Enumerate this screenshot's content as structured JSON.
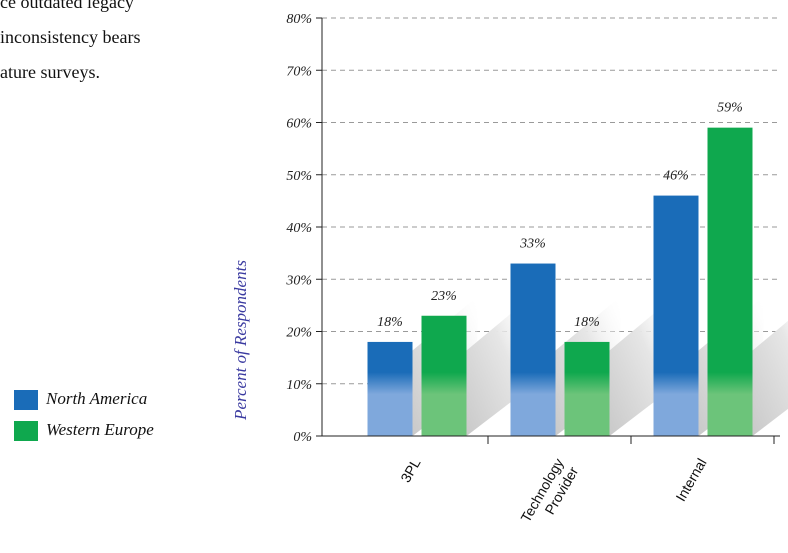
{
  "paragraph": {
    "lines": [
      "ce outdated legacy",
      "inconsistency bears",
      "ature surveys."
    ]
  },
  "legend": {
    "items": [
      {
        "label": "North America",
        "color": "#1a6cb8"
      },
      {
        "label": "Western Europe",
        "color": "#0fa84e"
      }
    ]
  },
  "chart_data": {
    "type": "bar",
    "categories": [
      "3PL",
      "Technology Provider",
      "Internal"
    ],
    "category_lines": [
      [
        "3PL"
      ],
      [
        "Technology",
        "Provider"
      ],
      [
        "Internal"
      ]
    ],
    "series": [
      {
        "name": "North America",
        "values": [
          18,
          33,
          46
        ],
        "labels": [
          "18%",
          "33%",
          "46%"
        ],
        "color": "#1a6cb8"
      },
      {
        "name": "Western Europe",
        "values": [
          23,
          18,
          59
        ],
        "labels": [
          "23%",
          "18%",
          "59%"
        ],
        "color": "#0fa84e"
      }
    ],
    "ylabel": "Percent of Respondents",
    "ylim": [
      0,
      80
    ],
    "yticks": [
      0,
      10,
      20,
      30,
      40,
      50,
      60,
      70,
      80
    ],
    "ytick_labels": [
      "0%",
      "10%",
      "20%",
      "30%",
      "40%",
      "50%",
      "60%",
      "70%",
      "80%"
    ],
    "grid": true
  }
}
